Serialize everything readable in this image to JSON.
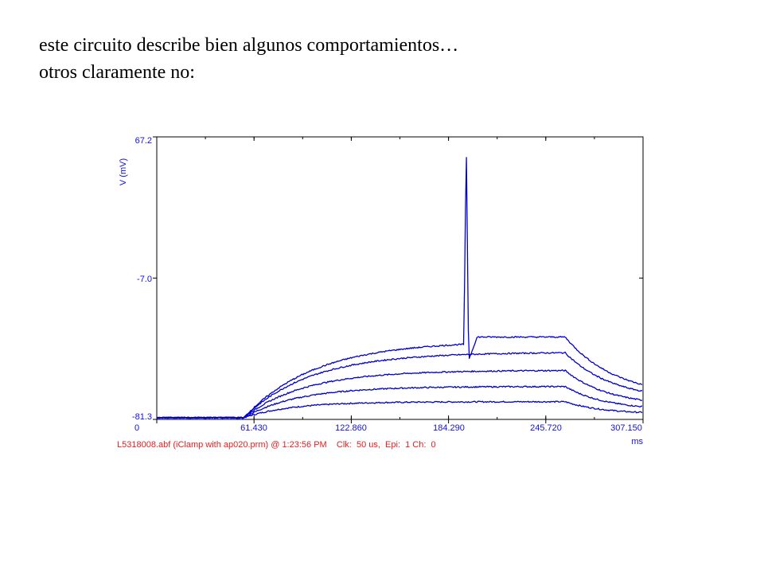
{
  "slide": {
    "line1": "este circuito describe bien algunos comportamientos…",
    "line2": "otros claramente no:"
  },
  "chart_data": {
    "type": "line",
    "title": "",
    "xlabel": "ms",
    "ylabel": "V (mV)",
    "xlim": [
      0,
      307.15
    ],
    "ylim": [
      -81.3,
      67.2
    ],
    "x_ticks": [
      "0",
      "61.430",
      "122.860",
      "184.290",
      "245.720",
      "307.150"
    ],
    "y_ticks": [
      "67.2",
      "-7.0",
      "-81.3"
    ],
    "grid": false,
    "line_color": "#0000cc",
    "footer_info": "L5318008.abf (iClamp with ap020.prm) @ 1:23:56 PM    Clk:  50 us,  Epi:  1 Ch:  0",
    "stimulus": {
      "step_on_ms": 55,
      "step_off_ms": 258
    },
    "series": [
      {
        "baseline_mv": -80.4,
        "plateau_mv": -72.0,
        "end_mv": -78.5,
        "tau_on_ms": 30
      },
      {
        "baseline_mv": -80.4,
        "plateau_mv": -64.0,
        "end_mv": -76.5,
        "tau_on_ms": 34
      },
      {
        "baseline_mv": -80.4,
        "plateau_mv": -55.5,
        "end_mv": -74.5,
        "tau_on_ms": 38
      },
      {
        "baseline_mv": -80.4,
        "plateau_mv": -46.0,
        "end_mv": -71.5,
        "tau_on_ms": 42
      },
      {
        "baseline_mv": -80.4,
        "plateau_mv": -38.0,
        "end_mv": -70.0,
        "tau_on_ms": 45,
        "spike": {
          "t_ms": 195.5,
          "peak_mv": 64.0,
          "pre_mv": -40.0,
          "trough_mv": -50.0,
          "post_mv": -38.0
        }
      }
    ]
  }
}
